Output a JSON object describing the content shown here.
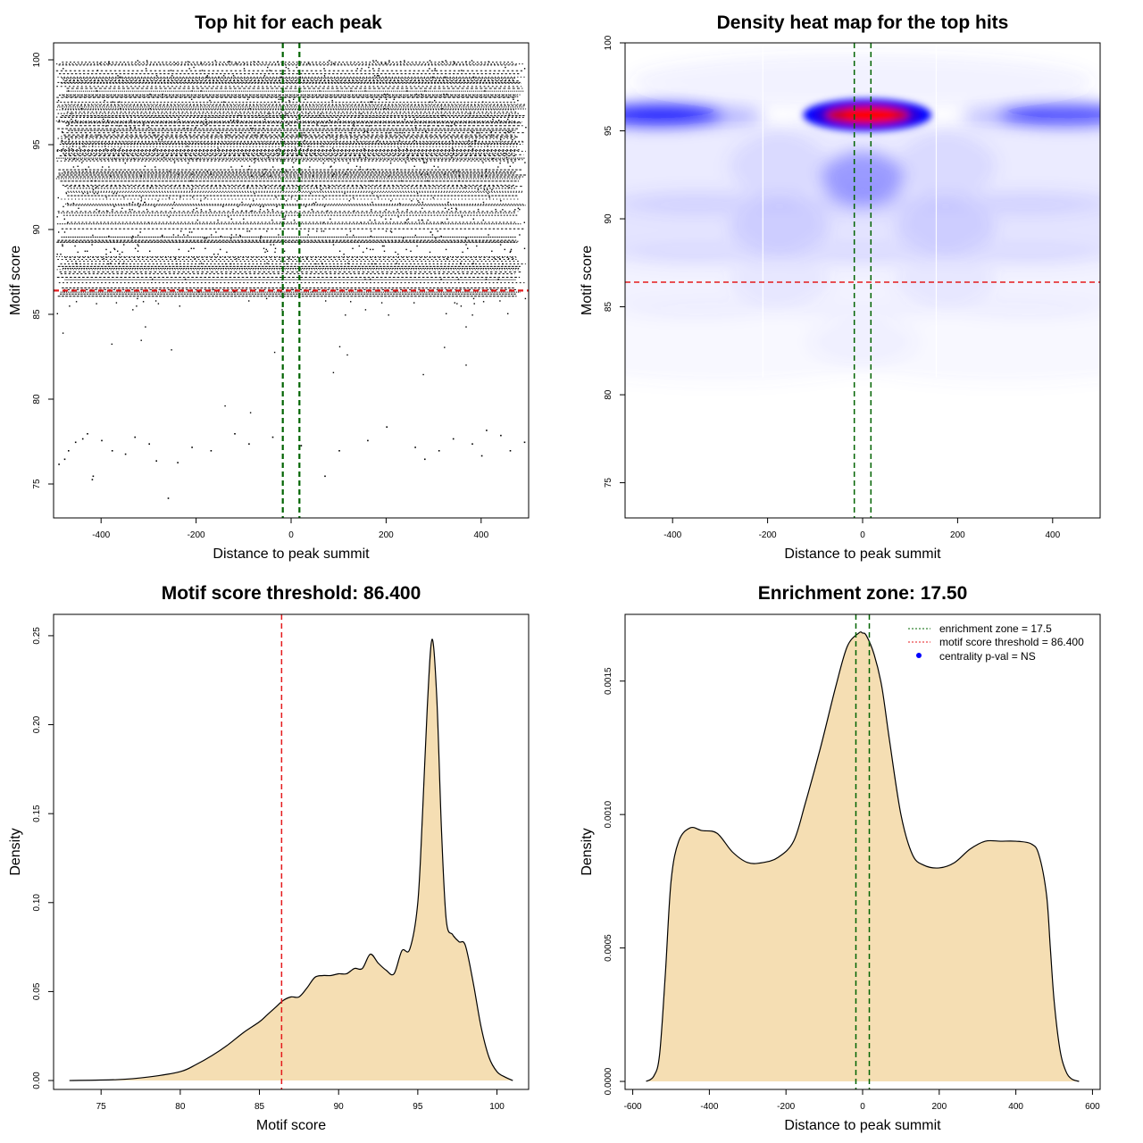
{
  "chart_data": [
    {
      "type": "scatter",
      "title": "Top hit for each peak",
      "xlabel": "Distance to peak summit",
      "ylabel": "Motif score",
      "xlim": [
        -500,
        500
      ],
      "ylim": [
        73,
        101
      ],
      "xticks": [
        -400,
        -200,
        0,
        200,
        400
      ],
      "yticks": [
        75,
        80,
        85,
        90,
        95,
        100
      ],
      "xtick_labels": [
        "-400",
        "-200",
        "0",
        "200",
        "400"
      ],
      "ytick_labels": [
        "75",
        "80",
        "85",
        "90",
        "95",
        "100"
      ],
      "x_range": [
        -495,
        495
      ],
      "score_max": 100,
      "score_mode": 96,
      "sparse_points": [
        [
          -490,
          76.2
        ],
        [
          -478,
          76.5
        ],
        [
          -470,
          77.0
        ],
        [
          -455,
          77.5
        ],
        [
          -440,
          77.7
        ],
        [
          -430,
          78.0
        ],
        [
          -420,
          75.3
        ],
        [
          -418,
          75.5
        ],
        [
          -400,
          77.6
        ],
        [
          -378,
          77.0
        ],
        [
          -350,
          76.8
        ],
        [
          -330,
          77.8
        ],
        [
          -300,
          77.4
        ],
        [
          -285,
          76.4
        ],
        [
          -260,
          74.2
        ],
        [
          -240,
          76.3
        ],
        [
          -210,
          77.2
        ],
        [
          -170,
          77.0
        ],
        [
          -120,
          78.0
        ],
        [
          -90,
          77.4
        ],
        [
          -40,
          77.8
        ],
        [
          20,
          77.3
        ],
        [
          70,
          75.5
        ],
        [
          100,
          77.0
        ],
        [
          160,
          77.6
        ],
        [
          200,
          78.4
        ],
        [
          260,
          77.2
        ],
        [
          280,
          76.5
        ],
        [
          310,
          77.0
        ],
        [
          340,
          77.7
        ],
        [
          380,
          77.4
        ],
        [
          400,
          76.7
        ],
        [
          410,
          78.2
        ],
        [
          440,
          77.9
        ],
        [
          460,
          77.0
        ],
        [
          490,
          77.5
        ]
      ],
      "h_lines": [
        {
          "y": 86.4,
          "color": "#e41a1c",
          "dash": "dashed"
        }
      ],
      "v_lines": [
        {
          "x": -17.5,
          "color": "#006400",
          "dash": "dashed"
        },
        {
          "x": 17.5,
          "color": "#006400",
          "dash": "dashed"
        }
      ]
    },
    {
      "type": "heatmap",
      "title": "Density heat map for the top hits",
      "xlabel": "Distance to peak summit",
      "ylabel": "Motif score",
      "xlim": [
        -500,
        500
      ],
      "ylim": [
        73,
        100
      ],
      "xticks": [
        -400,
        -200,
        0,
        200,
        400
      ],
      "yticks": [
        75,
        80,
        85,
        90,
        95,
        100
      ],
      "xtick_labels": [
        "-400",
        "-200",
        "0",
        "200",
        "400"
      ],
      "ytick_labels": [
        "75",
        "80",
        "85",
        "90",
        "95",
        "100"
      ],
      "colors": [
        "#ffffff",
        "#0000ff",
        "#ff0000"
      ],
      "peak": {
        "x": 10,
        "y": 95.9
      },
      "h_lines": [
        {
          "y": 86.4,
          "color": "#e41a1c",
          "dash": "dashed"
        }
      ],
      "v_lines": [
        {
          "x": -17.5,
          "color": "#006400",
          "dash": "dashed"
        },
        {
          "x": 17.5,
          "color": "#006400",
          "dash": "dashed"
        }
      ]
    },
    {
      "type": "area",
      "title": "Motif score threshold: 86.400",
      "xlabel": "Motif score",
      "ylabel": "Density",
      "xlim": [
        72,
        102
      ],
      "ylim": [
        -0.005,
        0.262
      ],
      "xticks": [
        75,
        80,
        85,
        90,
        95,
        100
      ],
      "yticks": [
        0,
        0.05,
        0.1,
        0.15,
        0.2,
        0.25
      ],
      "xtick_labels": [
        "75",
        "80",
        "85",
        "90",
        "95",
        "100"
      ],
      "ytick_labels": [
        "0.00",
        "0.05",
        "0.10",
        "0.15",
        "0.20",
        "0.25"
      ],
      "fill": "#f5deb3",
      "x": [
        73,
        76,
        78,
        80,
        81,
        82,
        83,
        84,
        85,
        85.5,
        86,
        86.5,
        87,
        87.5,
        88,
        88.5,
        89,
        89.5,
        90,
        90.5,
        91,
        91.5,
        92,
        92.5,
        93,
        93.5,
        94,
        94.5,
        95,
        95.3,
        95.6,
        95.9,
        96.2,
        96.5,
        96.8,
        97.2,
        97.6,
        98.0,
        98.5,
        99.0,
        99.5,
        100,
        100.5,
        101
      ],
      "y": [
        0,
        0.0005,
        0.002,
        0.005,
        0.009,
        0.014,
        0.02,
        0.027,
        0.033,
        0.037,
        0.041,
        0.045,
        0.047,
        0.047,
        0.052,
        0.058,
        0.059,
        0.059,
        0.06,
        0.06,
        0.063,
        0.063,
        0.071,
        0.066,
        0.062,
        0.06,
        0.073,
        0.074,
        0.1,
        0.15,
        0.21,
        0.248,
        0.215,
        0.14,
        0.09,
        0.082,
        0.078,
        0.076,
        0.055,
        0.03,
        0.013,
        0.005,
        0.002,
        0
      ],
      "v_lines": [
        {
          "x": 86.4,
          "color": "#e41a1c",
          "dash": "dashed"
        }
      ]
    },
    {
      "type": "area",
      "title": "Enrichment zone: 17.50",
      "xlabel": "Distance to peak summit",
      "ylabel": "Density",
      "xlim": [
        -620,
        620
      ],
      "ylim": [
        -3e-05,
        0.00175
      ],
      "xticks": [
        -600,
        -400,
        -200,
        0,
        200,
        400,
        600
      ],
      "yticks": [
        0,
        0.0005,
        0.001,
        0.0015
      ],
      "xtick_labels": [
        "-600",
        "-400",
        "-200",
        "0",
        "200",
        "400",
        "600"
      ],
      "ytick_labels": [
        "0.0000",
        "0.0005",
        "0.0010",
        "0.0015"
      ],
      "fill": "#f5deb3",
      "x": [
        -565,
        -545,
        -530,
        -515,
        -500,
        -480,
        -450,
        -420,
        -380,
        -340,
        -300,
        -260,
        -220,
        -180,
        -150,
        -110,
        -70,
        -40,
        -10,
        0,
        10,
        30,
        50,
        70,
        100,
        130,
        160,
        200,
        240,
        280,
        320,
        360,
        400,
        440,
        460,
        480,
        490,
        500,
        515,
        530,
        545,
        565
      ],
      "y": [
        0,
        2e-05,
        0.0001,
        0.0004,
        0.00075,
        0.0009,
        0.00095,
        0.00094,
        0.00093,
        0.00086,
        0.00082,
        0.00082,
        0.00084,
        0.0009,
        0.00104,
        0.00125,
        0.00148,
        0.00163,
        0.00168,
        0.00168,
        0.00167,
        0.0016,
        0.00148,
        0.00128,
        0.001,
        0.00085,
        0.00081,
        0.0008,
        0.00082,
        0.00087,
        0.0009,
        0.0009,
        0.0009,
        0.00089,
        0.00085,
        0.0007,
        0.0005,
        0.0003,
        0.00012,
        4e-05,
        1e-05,
        0
      ],
      "v_lines": [
        {
          "x": -17.5,
          "color": "#006400",
          "dash": "dashed"
        },
        {
          "x": 17.5,
          "color": "#006400",
          "dash": "dashed"
        }
      ],
      "legend": {
        "position": "top-right",
        "items": [
          {
            "label": "enrichment zone = 17.5",
            "color": "#006400",
            "style": "dotted-line"
          },
          {
            "label": "motif score threshold = 86.400",
            "color": "#e41a1c",
            "style": "dotted-line"
          },
          {
            "label": "centrality p-val = NS",
            "color": "#0000ff",
            "style": "point"
          }
        ]
      }
    }
  ]
}
